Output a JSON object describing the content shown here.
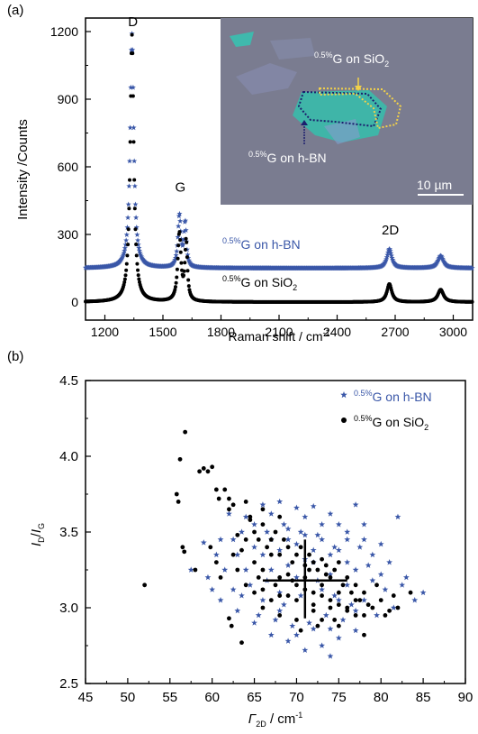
{
  "chart_data": [
    {
      "panel_label": "(a)",
      "type": "line",
      "xlabel": "Raman shift / cm",
      "xlabel_sup": "-1",
      "ylabel": "Intensity /Counts",
      "xlim": [
        1100,
        3100
      ],
      "ylim": [
        -80,
        1260
      ],
      "xticks": [
        1200,
        1500,
        1800,
        2100,
        2400,
        2700,
        3000
      ],
      "yticks": [
        0,
        300,
        600,
        900,
        1200
      ],
      "peak_labels": [
        {
          "text": "D",
          "x": 1345,
          "y": 1225
        },
        {
          "text": "G",
          "x": 1590,
          "y": 490
        },
        {
          "text": "2D",
          "x": 2675,
          "y": 300
        }
      ],
      "series": [
        {
          "label_sup": "0.5%",
          "label_main": "G on h-BN",
          "label_sub": "",
          "color": "#3a57a8",
          "marker": "star",
          "baseline": 150,
          "peaks": [
            {
              "center": 1340,
              "height": 1040,
              "width": 22
            },
            {
              "center": 1585,
              "height": 230,
              "width": 18
            },
            {
              "center": 1615,
              "height": 195,
              "width": 15
            },
            {
              "center": 2670,
              "height": 85,
              "width": 30
            },
            {
              "center": 2935,
              "height": 55,
              "width": 35
            }
          ]
        },
        {
          "label_sup": "0.5%",
          "label_main": "G on SiO",
          "label_sub": "2",
          "color": "#000000",
          "marker": "dot",
          "baseline": 0,
          "peaks": [
            {
              "center": 1340,
              "height": 1185,
              "width": 22
            },
            {
              "center": 1585,
              "height": 300,
              "width": 20
            },
            {
              "center": 1620,
              "height": 260,
              "width": 15
            },
            {
              "center": 2670,
              "height": 80,
              "width": 30
            },
            {
              "center": 2935,
              "height": 55,
              "width": 35
            }
          ]
        }
      ],
      "inset": {
        "label_top_sup": "0.5%",
        "label_top_main": "G on SiO",
        "label_top_sub": "2",
        "label_bottom_sup": "0.5%",
        "label_bottom_main": "G on h-BN",
        "scale_bar": "10 µm",
        "background_color": "#7a7c90",
        "flake_color": "#40b8ac",
        "outline_colors": [
          "#f2d14a",
          "#1c1f6e"
        ]
      }
    },
    {
      "panel_label": "(b)",
      "type": "scatter",
      "xlabel": "Γ",
      "xlabel_sub": "2D",
      "xlabel_unit": " / cm",
      "xlabel_sup": "-1",
      "ylabel": "I",
      "ylabel_sub1": "D",
      "ylabel_mid": "/",
      "ylabel_i2": "I",
      "ylabel_sub2": "G",
      "xlim": [
        45,
        90
      ],
      "ylim": [
        2.5,
        4.5
      ],
      "xticks": [
        45,
        50,
        55,
        60,
        65,
        70,
        75,
        80,
        85,
        90
      ],
      "yticks": [
        2.5,
        3.0,
        3.5,
        4.0,
        4.5
      ],
      "legend": [
        {
          "marker": "star",
          "sup": "0.5%",
          "main": "G on h-BN",
          "sub": "",
          "color": "#3a57a8"
        },
        {
          "marker": "dot",
          "sup": "0.5%",
          "main": "G on SiO",
          "sub": "2",
          "color": "#000000"
        }
      ],
      "legend_position": "top-right",
      "series": [
        {
          "name": "0.5%G on h-BN",
          "marker": "star",
          "color": "#3a57a8",
          "points": [
            [
              57.5,
              3.25
            ],
            [
              59,
              3.43
            ],
            [
              62,
              3.62
            ],
            [
              62.5,
              3.45
            ],
            [
              63,
              3.35
            ],
            [
              63.5,
              3.5
            ],
            [
              64,
              3.6
            ],
            [
              65,
              3.55
            ],
            [
              66,
              3.68
            ],
            [
              66.5,
              3.5
            ],
            [
              67,
              3.62
            ],
            [
              68,
              3.7
            ],
            [
              68.5,
              3.55
            ],
            [
              69,
              3.45
            ],
            [
              70,
              3.66
            ],
            [
              70.5,
              3.5
            ],
            [
              71,
              3.6
            ],
            [
              72,
              3.67
            ],
            [
              72.5,
              3.48
            ],
            [
              73,
              3.55
            ],
            [
              74,
              3.62
            ],
            [
              74.5,
              3.4
            ],
            [
              75,
              3.55
            ],
            [
              76,
              3.45
            ],
            [
              77,
              3.68
            ],
            [
              77.5,
              3.4
            ],
            [
              78,
              3.55
            ],
            [
              79,
              3.35
            ],
            [
              80,
              3.42
            ],
            [
              81,
              3.3
            ],
            [
              82,
              3.6
            ],
            [
              83,
              3.2
            ],
            [
              84,
              3.05
            ],
            [
              85,
              3.1
            ],
            [
              81.5,
              3.0
            ],
            [
              79.5,
              2.95
            ],
            [
              77,
              2.85
            ],
            [
              75,
              2.8
            ],
            [
              73,
              2.75
            ],
            [
              71,
              2.72
            ],
            [
              69,
              2.78
            ],
            [
              67,
              2.82
            ],
            [
              65,
              2.9
            ],
            [
              63,
              2.98
            ],
            [
              61,
              3.05
            ],
            [
              60,
              3.12
            ],
            [
              59.5,
              3.2
            ],
            [
              60.5,
              3.35
            ],
            [
              61.5,
              3.25
            ],
            [
              64.5,
              3.15
            ],
            [
              66,
              3.05
            ],
            [
              68,
              3.1
            ],
            [
              70,
              3.2
            ],
            [
              72,
              3.3
            ],
            [
              74,
              3.22
            ],
            [
              76,
              3.15
            ],
            [
              78,
              3.05
            ],
            [
              79,
              3.18
            ],
            [
              80.5,
              3.12
            ],
            [
              66,
              3.35
            ],
            [
              68,
              3.38
            ],
            [
              70,
              3.42
            ],
            [
              72,
              3.38
            ],
            [
              74,
              3.35
            ],
            [
              76,
              3.3
            ],
            [
              67,
              3.25
            ],
            [
              69,
              3.28
            ],
            [
              71,
              3.32
            ],
            [
              73,
              3.12
            ],
            [
              75,
              3.05
            ],
            [
              77,
              2.98
            ],
            [
              65.5,
              2.95
            ],
            [
              67.5,
              2.92
            ],
            [
              69.5,
              2.88
            ],
            [
              71.5,
              2.9
            ],
            [
              73.5,
              2.95
            ],
            [
              75.5,
              2.92
            ],
            [
              62.5,
              3.12
            ],
            [
              64,
              3.25
            ],
            [
              65,
              3.4
            ],
            [
              67,
              3.45
            ],
            [
              69,
              3.52
            ],
            [
              71,
              3.48
            ],
            [
              73,
              3.45
            ],
            [
              75,
              3.38
            ],
            [
              77,
              3.25
            ],
            [
              78.5,
              3.28
            ],
            [
              66.5,
              3.18
            ],
            [
              68.5,
              3.02
            ],
            [
              70.5,
              3.08
            ],
            [
              72.5,
              3.18
            ],
            [
              74.5,
              3.08
            ],
            [
              76.5,
              3.02
            ],
            [
              70,
              2.82
            ],
            [
              72,
              2.86
            ],
            [
              74,
              2.86
            ],
            [
              68,
              2.98
            ],
            [
              63.5,
              3.08
            ],
            [
              80,
              3.22
            ],
            [
              82.5,
              3.15
            ],
            [
              61,
              3.45
            ],
            [
              76,
              3.5
            ],
            [
              78,
              3.45
            ],
            [
              74,
              2.68
            ]
          ]
        },
        {
          "name": "0.5%G on SiO2",
          "marker": "dot",
          "color": "#000000",
          "points": [
            [
              52,
              3.15
            ],
            [
              55.8,
              3.75
            ],
            [
              56,
              3.7
            ],
            [
              56.2,
              3.98
            ],
            [
              56.5,
              3.4
            ],
            [
              56.7,
              3.37
            ],
            [
              56.8,
              4.16
            ],
            [
              58.5,
              3.9
            ],
            [
              59,
              3.92
            ],
            [
              59.5,
              3.9
            ],
            [
              60,
              3.93
            ],
            [
              59.8,
              3.4
            ],
            [
              60.5,
              3.78
            ],
            [
              60.8,
              3.72
            ],
            [
              61.5,
              3.78
            ],
            [
              62,
              3.72
            ],
            [
              62.5,
              3.68
            ],
            [
              62,
              3.65
            ],
            [
              62,
              2.93
            ],
            [
              62.3,
              2.88
            ],
            [
              62.5,
              3.35
            ],
            [
              63,
              3.25
            ],
            [
              63.5,
              3.38
            ],
            [
              63.5,
              2.77
            ],
            [
              64,
              3.7
            ],
            [
              64.5,
              3.6
            ],
            [
              65,
              3.5
            ],
            [
              65.5,
              3.45
            ],
            [
              66,
              3.55
            ],
            [
              66.5,
              3.4
            ],
            [
              67,
              3.45
            ],
            [
              67.5,
              3.5
            ],
            [
              68,
              3.35
            ],
            [
              68.5,
              3.45
            ],
            [
              69,
              3.4
            ],
            [
              69.5,
              3.3
            ],
            [
              70,
              3.35
            ],
            [
              70.5,
              3.4
            ],
            [
              71,
              3.28
            ],
            [
              71.5,
              3.35
            ],
            [
              72,
              3.3
            ],
            [
              72.5,
              3.25
            ],
            [
              73,
              3.32
            ],
            [
              73.5,
              3.28
            ],
            [
              74,
              3.2
            ],
            [
              74.5,
              3.25
            ],
            [
              75,
              3.3
            ],
            [
              75.5,
              3.15
            ],
            [
              76,
              3.2
            ],
            [
              76.5,
              3.1
            ],
            [
              77,
              3.15
            ],
            [
              77.5,
              3.05
            ],
            [
              78,
              3.1
            ],
            [
              78.5,
              3.02
            ],
            [
              79,
              3.0
            ],
            [
              80,
              3.05
            ],
            [
              80.5,
              2.95
            ],
            [
              81,
              2.98
            ],
            [
              82,
              3.0
            ],
            [
              83.5,
              3.1
            ],
            [
              78,
              2.82
            ],
            [
              75,
              2.88
            ],
            [
              73,
              2.92
            ],
            [
              72,
              2.98
            ],
            [
              70,
              2.92
            ],
            [
              68,
              2.95
            ],
            [
              66,
              3.0
            ],
            [
              65,
              3.1
            ],
            [
              67,
              3.05
            ],
            [
              69,
              3.08
            ],
            [
              71,
              3.12
            ],
            [
              73,
              3.08
            ],
            [
              75,
              3.02
            ],
            [
              77,
              2.95
            ],
            [
              66,
              3.25
            ],
            [
              68,
              3.2
            ],
            [
              70,
              3.15
            ],
            [
              72,
              3.1
            ],
            [
              74,
              3.05
            ],
            [
              76,
              3.0
            ],
            [
              78,
              2.95
            ],
            [
              65,
              3.3
            ],
            [
              67,
              3.35
            ],
            [
              69,
              3.22
            ],
            [
              71,
              3.2
            ],
            [
              73,
              3.15
            ],
            [
              75,
              3.1
            ],
            [
              77,
              3.05
            ],
            [
              64,
              3.15
            ],
            [
              66,
              3.12
            ],
            [
              68,
              3.08
            ],
            [
              70,
              3.05
            ],
            [
              72,
              3.02
            ],
            [
              74,
              3.0
            ],
            [
              76,
              2.98
            ],
            [
              70.5,
              2.85
            ],
            [
              72.5,
              2.88
            ],
            [
              74.5,
              2.92
            ],
            [
              69.5,
              3.18
            ],
            [
              71.5,
              3.25
            ],
            [
              73.5,
              3.22
            ],
            [
              67.5,
              3.15
            ],
            [
              65.5,
              3.2
            ],
            [
              63,
              3.48
            ],
            [
              64,
              3.45
            ],
            [
              79.5,
              3.15
            ],
            [
              81.5,
              3.08
            ],
            [
              60.5,
              3.3
            ],
            [
              61,
              3.2
            ],
            [
              58,
              3.25
            ],
            [
              68,
              3.6
            ],
            [
              66,
              3.65
            ],
            [
              64.5,
              3.58
            ]
          ]
        }
      ],
      "crosshair": {
        "x_center": 71,
        "y_center": 3.18,
        "x_span": [
          66,
          76
        ],
        "y_span": [
          2.93,
          3.45
        ]
      }
    }
  ]
}
